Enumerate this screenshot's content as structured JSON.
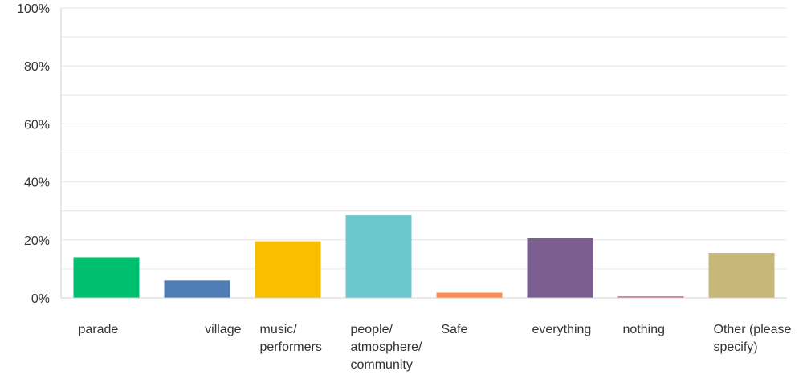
{
  "chart_data": {
    "type": "bar",
    "categories": [
      [
        "parade"
      ],
      [
        "village"
      ],
      [
        "music/",
        "performers"
      ],
      [
        "people/",
        "atmosphere/",
        "community"
      ],
      [
        "Safe"
      ],
      [
        "everything"
      ],
      [
        "nothing"
      ],
      [
        "Other (please",
        "specify)"
      ]
    ],
    "values": [
      14,
      6,
      19.5,
      28.5,
      1.8,
      20.5,
      0.5,
      15.5
    ],
    "colors": [
      "#00bf6f",
      "#507cb6",
      "#f9be00",
      "#6bc8cd",
      "#ff8b4f",
      "#7d5e90",
      "#d25f90",
      "#c7b879"
    ],
    "ylim": [
      0,
      100
    ],
    "yticks": [
      "0%",
      "20%",
      "40%",
      "60%",
      "80%",
      "100%"
    ],
    "grid": true
  }
}
